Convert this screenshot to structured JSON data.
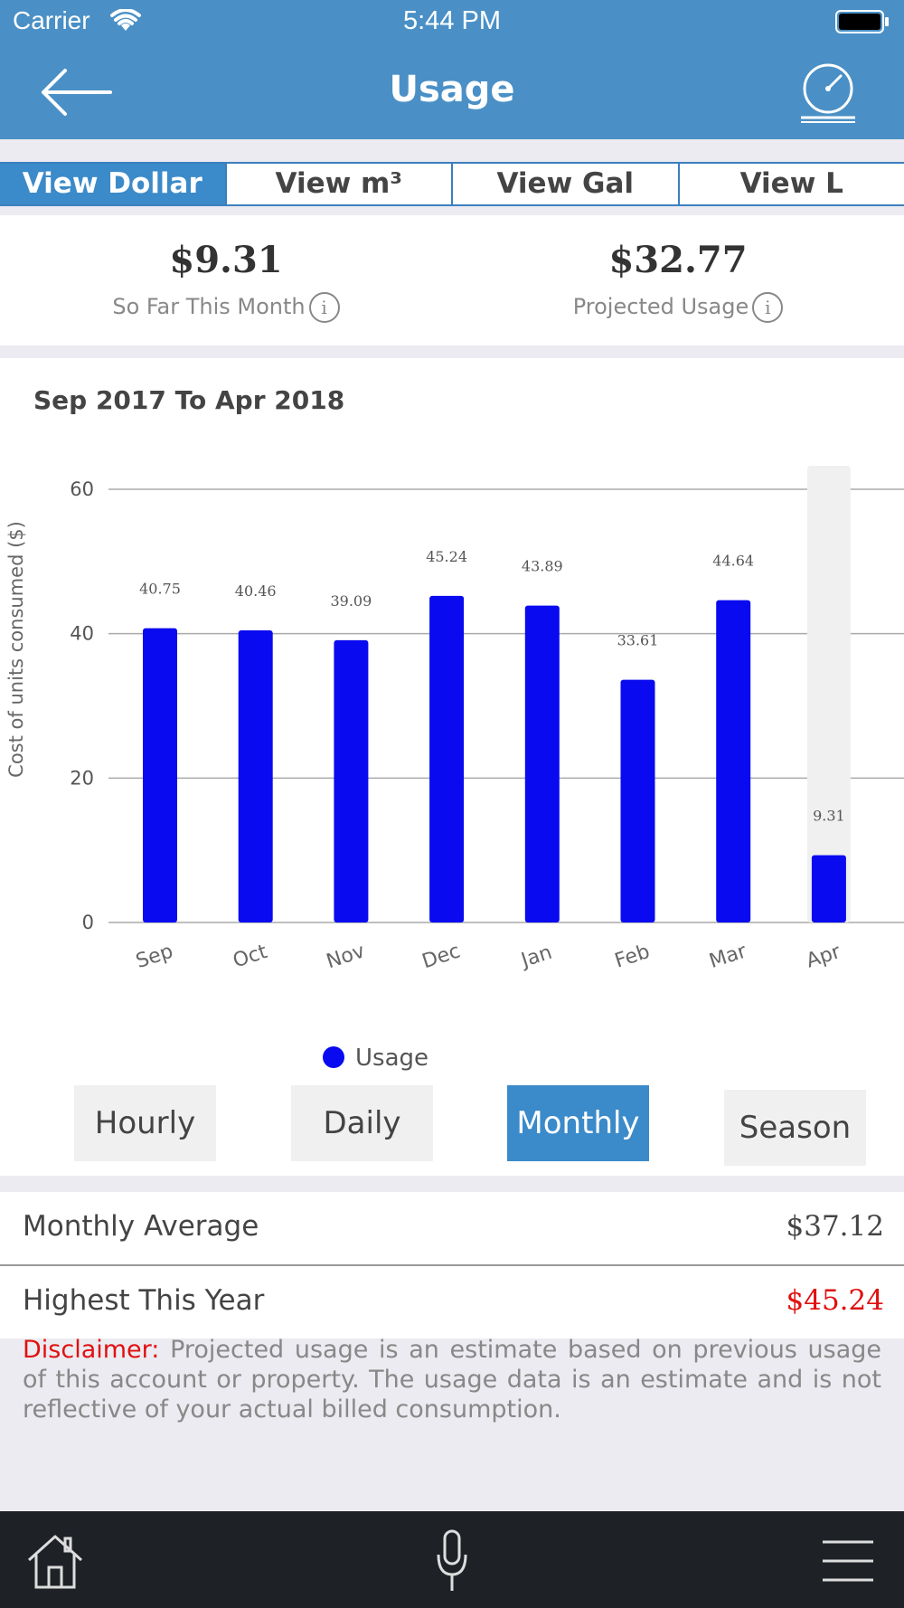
{
  "status": {
    "carrier": "Carrier",
    "time": "5:44 PM"
  },
  "header": {
    "title": "Usage"
  },
  "tabs": [
    {
      "label": "View Dollar"
    },
    {
      "label": "View m³"
    },
    {
      "label": "View Gal"
    },
    {
      "label": "View L"
    }
  ],
  "summary": {
    "so_far_value": "$9.31",
    "so_far_label": "So Far This Month",
    "projected_value": "$32.77",
    "projected_label": "Projected Usage",
    "info_glyph": "i"
  },
  "chart_data": {
    "type": "bar",
    "title": "Sep 2017 To Apr 2018",
    "categories": [
      "Sep",
      "Oct",
      "Nov",
      "Dec",
      "Jan",
      "Feb",
      "Mar",
      "Apr"
    ],
    "values": [
      40.75,
      40.46,
      39.09,
      45.24,
      43.89,
      33.61,
      44.64,
      9.31
    ],
    "data_labels": [
      "40.75",
      "40.46",
      "39.09",
      "45.24",
      "43.89",
      "33.61",
      "44.64",
      "9.31"
    ],
    "ylabel": "Cost of units consumed ($)",
    "yticks": [
      0,
      20,
      40,
      60
    ],
    "ylim": [
      0,
      60
    ],
    "grid": true,
    "legend": {
      "label": "Usage",
      "placement": "bottom-center"
    },
    "bar_color": "#0a0af0",
    "highlight": {
      "category": "Apr",
      "color": "#f0f0f0"
    }
  },
  "periods": [
    {
      "label": "Hourly",
      "active": false
    },
    {
      "label": "Daily",
      "active": false
    },
    {
      "label": "Monthly",
      "active": true
    },
    {
      "label": "Season",
      "active": false
    }
  ],
  "stats": {
    "monthly_average_label": "Monthly Average",
    "monthly_average_value": "$37.12",
    "highest_label": "Highest This Year",
    "highest_value": "$45.24"
  },
  "disclaimer": {
    "label": "Disclaimer:",
    "text": "Projected usage is an estimate based on previous usage of this account or property. The usage data is an estimate and is not reflective of your actual billed consumption."
  },
  "colors": {
    "header": "#4a90c6",
    "accent": "#3b8ac9",
    "danger": "#e01010",
    "tabbar": "#1e2227"
  },
  "icons": [
    "wifi-icon",
    "battery-icon",
    "back-arrow-icon",
    "gauge-icon",
    "info-icon",
    "home-icon",
    "microphone-icon",
    "menu-icon"
  ]
}
